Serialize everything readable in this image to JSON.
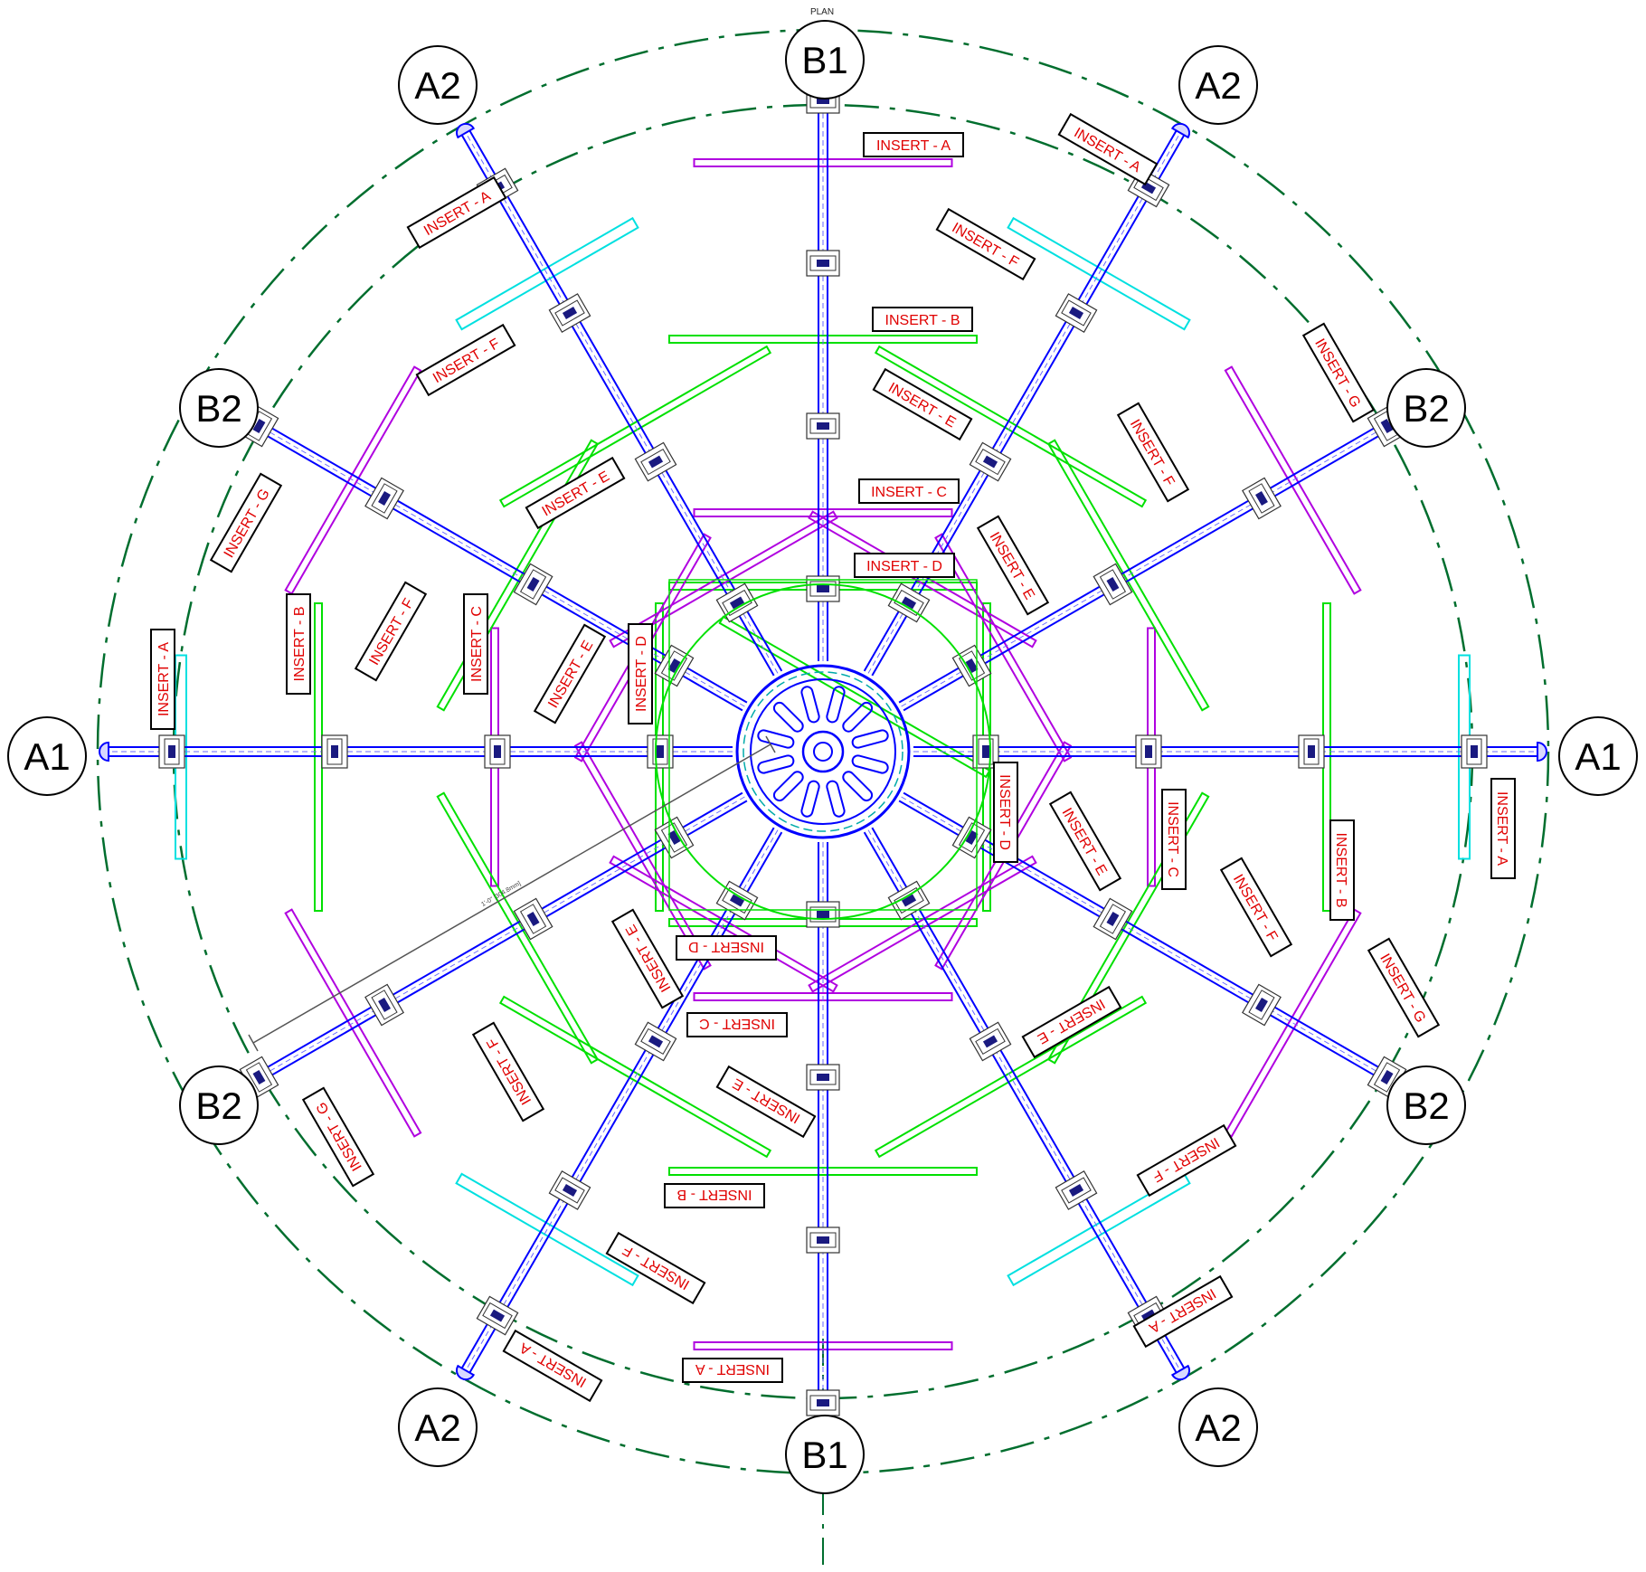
{
  "title": "PLAN",
  "colors": {
    "background": "#ffffff",
    "beam": "#0000ff",
    "ring": "#006e2e",
    "insert_text": "#e00000",
    "insert_green": "#00e000",
    "insert_purple": "#b000e0",
    "insert_cyan": "#00e0e0",
    "dimension": "#555555"
  },
  "grid_bubbles": [
    {
      "label": "B1"
    },
    {
      "label": "A2"
    },
    {
      "label": "A2"
    },
    {
      "label": "B2"
    },
    {
      "label": "B2"
    },
    {
      "label": "A1"
    },
    {
      "label": "A1"
    },
    {
      "label": "B2"
    },
    {
      "label": "B2"
    },
    {
      "label": "A2"
    },
    {
      "label": "B1"
    },
    {
      "label": "A2"
    }
  ],
  "insert_labels": [
    "INSERT - A",
    "INSERT - B",
    "INSERT - C",
    "INSERT - D",
    "INSERT - E",
    "INSERT - F",
    "INSERT - G"
  ],
  "dimension_text": "1'-0\" [304.8mm]"
}
